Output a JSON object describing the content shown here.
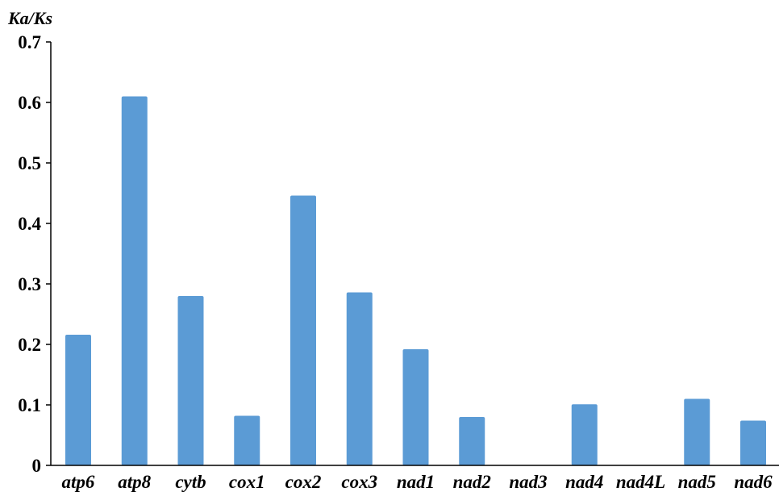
{
  "chart_data": {
    "type": "bar",
    "title": "",
    "xlabel": "",
    "ylabel": "Ka/Ks",
    "ylim": [
      0,
      0.7
    ],
    "yticks": [
      "0",
      "0.1",
      "0.2",
      "0.3",
      "0.4",
      "0.5",
      "0.6",
      "0.7"
    ],
    "grid": false,
    "legend": "none",
    "bar_color": "#5b9bd5",
    "categories": [
      "atp6",
      "atp8",
      "cytb",
      "cox1",
      "cox2",
      "cox3",
      "nad1",
      "nad2",
      "nad3",
      "nad4",
      "nad4L",
      "nad5",
      "nad6"
    ],
    "values": [
      0.216,
      0.61,
      0.28,
      0.082,
      0.446,
      0.286,
      0.192,
      0.08,
      0,
      0.101,
      0,
      0.11,
      0.074
    ]
  }
}
